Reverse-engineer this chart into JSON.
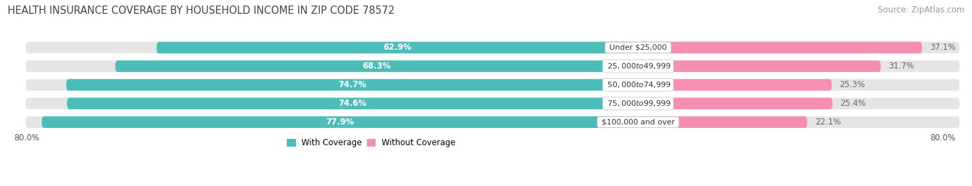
{
  "title": "HEALTH INSURANCE COVERAGE BY HOUSEHOLD INCOME IN ZIP CODE 78572",
  "source": "Source: ZipAtlas.com",
  "categories": [
    "Under $25,000",
    "$25,000 to $49,999",
    "$50,000 to $74,999",
    "$75,000 to $99,999",
    "$100,000 and over"
  ],
  "with_coverage": [
    62.9,
    68.3,
    74.7,
    74.6,
    77.9
  ],
  "without_coverage": [
    37.1,
    31.7,
    25.3,
    25.4,
    22.1
  ],
  "color_coverage": "#4dbdba",
  "color_no_coverage": "#f48fb1",
  "color_track": "#e5e5e5",
  "x_axis_left_label": "80.0%",
  "x_axis_right_label": "80.0%",
  "legend_coverage": "With Coverage",
  "legend_no_coverage": "Without Coverage",
  "title_fontsize": 10.5,
  "source_fontsize": 8.5,
  "bar_label_fontsize": 8.5,
  "category_fontsize": 8,
  "bar_height": 0.62,
  "fig_bg": "#ffffff",
  "axes_bg": "#ffffff",
  "total_width": 100,
  "xlim_left": -82,
  "xlim_right": 42
}
